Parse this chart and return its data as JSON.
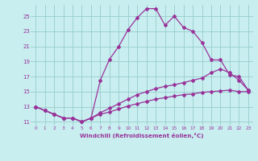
{
  "xlabel": "Windchill (Refroidissement éolien,°C)",
  "bg_color": "#c8eef0",
  "line_color": "#993399",
  "grid_color": "#99cccc",
  "xlim": [
    -0.5,
    23.5
  ],
  "ylim": [
    10.5,
    26.5
  ],
  "yticks": [
    11,
    13,
    15,
    17,
    19,
    21,
    23,
    25
  ],
  "xticks": [
    0,
    1,
    2,
    3,
    4,
    5,
    6,
    7,
    8,
    9,
    10,
    11,
    12,
    13,
    14,
    15,
    16,
    17,
    18,
    19,
    20,
    21,
    22,
    23
  ],
  "line1_x": [
    0,
    1,
    2,
    3,
    4,
    5,
    6,
    7,
    8,
    9,
    10,
    11,
    12,
    13,
    14,
    15,
    16,
    17,
    18,
    19,
    20,
    21,
    22,
    23
  ],
  "line1_y": [
    13.0,
    12.5,
    12.0,
    11.5,
    11.5,
    11.0,
    11.5,
    16.5,
    19.3,
    21.0,
    23.2,
    24.8,
    26.0,
    26.0,
    23.8,
    25.0,
    23.5,
    23.0,
    21.5,
    19.2,
    19.2,
    17.2,
    17.0,
    15.2
  ],
  "line2_x": [
    0,
    1,
    2,
    3,
    4,
    5,
    6,
    7,
    8,
    9,
    10,
    11,
    12,
    13,
    14,
    15,
    16,
    17,
    18,
    19,
    20,
    21,
    22,
    23
  ],
  "line2_y": [
    13.0,
    12.5,
    12.0,
    11.5,
    11.5,
    11.0,
    11.5,
    12.2,
    12.8,
    13.4,
    14.0,
    14.6,
    15.0,
    15.4,
    15.7,
    15.9,
    16.2,
    16.5,
    16.8,
    17.5,
    18.0,
    17.5,
    16.5,
    15.2
  ],
  "line3_x": [
    0,
    1,
    2,
    3,
    4,
    5,
    6,
    7,
    8,
    9,
    10,
    11,
    12,
    13,
    14,
    15,
    16,
    17,
    18,
    19,
    20,
    21,
    22,
    23
  ],
  "line3_y": [
    13.0,
    12.5,
    12.0,
    11.5,
    11.5,
    11.0,
    11.5,
    12.0,
    12.3,
    12.7,
    13.1,
    13.4,
    13.7,
    14.0,
    14.2,
    14.4,
    14.6,
    14.7,
    14.9,
    15.0,
    15.1,
    15.2,
    15.0,
    15.0
  ]
}
